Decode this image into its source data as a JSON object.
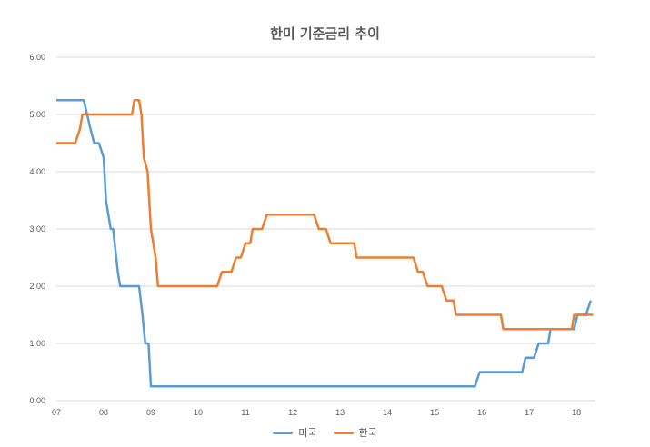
{
  "chart_data": {
    "type": "line",
    "title": "한미 기준금리 추이",
    "xlabel": "",
    "ylabel": "",
    "ylim": [
      0,
      6
    ],
    "yticks": [
      "0.00",
      "1.00",
      "2.00",
      "3.00",
      "4.00",
      "5.00",
      "6.00"
    ],
    "xlim": [
      2007.0,
      2018.4
    ],
    "xticks": [
      {
        "x": 2007.0,
        "label": "07"
      },
      {
        "x": 2008.0,
        "label": "08"
      },
      {
        "x": 2009.0,
        "label": "09"
      },
      {
        "x": 2010.0,
        "label": "10"
      },
      {
        "x": 2011.0,
        "label": "11"
      },
      {
        "x": 2012.0,
        "label": "12"
      },
      {
        "x": 2013.0,
        "label": "13"
      },
      {
        "x": 2014.0,
        "label": "14"
      },
      {
        "x": 2015.0,
        "label": "15"
      },
      {
        "x": 2016.0,
        "label": "16"
      },
      {
        "x": 2017.0,
        "label": "17"
      },
      {
        "x": 2018.0,
        "label": "18"
      }
    ],
    "grid": true,
    "legend_position": "bottom",
    "series": [
      {
        "name": "미국",
        "color": "#5b9bd5",
        "points": [
          [
            2007.0,
            5.25
          ],
          [
            2007.58,
            5.25
          ],
          [
            2007.72,
            4.75
          ],
          [
            2007.8,
            4.5
          ],
          [
            2007.9,
            4.5
          ],
          [
            2008.0,
            4.25
          ],
          [
            2008.05,
            3.5
          ],
          [
            2008.15,
            3.0
          ],
          [
            2008.2,
            3.0
          ],
          [
            2008.3,
            2.25
          ],
          [
            2008.35,
            2.0
          ],
          [
            2008.75,
            2.0
          ],
          [
            2008.82,
            1.5
          ],
          [
            2008.88,
            1.0
          ],
          [
            2008.95,
            1.0
          ],
          [
            2009.0,
            0.25
          ],
          [
            2015.85,
            0.25
          ],
          [
            2015.95,
            0.5
          ],
          [
            2016.85,
            0.5
          ],
          [
            2016.92,
            0.75
          ],
          [
            2017.1,
            0.75
          ],
          [
            2017.2,
            1.0
          ],
          [
            2017.4,
            1.0
          ],
          [
            2017.45,
            1.25
          ],
          [
            2017.95,
            1.25
          ],
          [
            2018.02,
            1.5
          ],
          [
            2018.2,
            1.5
          ],
          [
            2018.3,
            1.75
          ]
        ]
      },
      {
        "name": "한국",
        "color": "#ed7d31",
        "points": [
          [
            2007.0,
            4.5
          ],
          [
            2007.4,
            4.5
          ],
          [
            2007.5,
            4.75
          ],
          [
            2007.55,
            5.0
          ],
          [
            2008.6,
            5.0
          ],
          [
            2008.65,
            5.25
          ],
          [
            2008.75,
            5.25
          ],
          [
            2008.8,
            5.0
          ],
          [
            2008.85,
            4.25
          ],
          [
            2008.93,
            4.0
          ],
          [
            2009.0,
            3.0
          ],
          [
            2009.1,
            2.5
          ],
          [
            2009.15,
            2.0
          ],
          [
            2010.4,
            2.0
          ],
          [
            2010.5,
            2.25
          ],
          [
            2010.7,
            2.25
          ],
          [
            2010.8,
            2.5
          ],
          [
            2010.9,
            2.5
          ],
          [
            2011.0,
            2.75
          ],
          [
            2011.1,
            2.75
          ],
          [
            2011.15,
            3.0
          ],
          [
            2011.35,
            3.0
          ],
          [
            2011.45,
            3.25
          ],
          [
            2012.45,
            3.25
          ],
          [
            2012.55,
            3.0
          ],
          [
            2012.7,
            3.0
          ],
          [
            2012.8,
            2.75
          ],
          [
            2013.3,
            2.75
          ],
          [
            2013.35,
            2.5
          ],
          [
            2014.55,
            2.5
          ],
          [
            2014.65,
            2.25
          ],
          [
            2014.75,
            2.25
          ],
          [
            2014.85,
            2.0
          ],
          [
            2015.15,
            2.0
          ],
          [
            2015.25,
            1.75
          ],
          [
            2015.4,
            1.75
          ],
          [
            2015.45,
            1.5
          ],
          [
            2016.4,
            1.5
          ],
          [
            2016.45,
            1.25
          ],
          [
            2017.9,
            1.25
          ],
          [
            2017.95,
            1.5
          ],
          [
            2018.35,
            1.5
          ]
        ]
      }
    ]
  }
}
